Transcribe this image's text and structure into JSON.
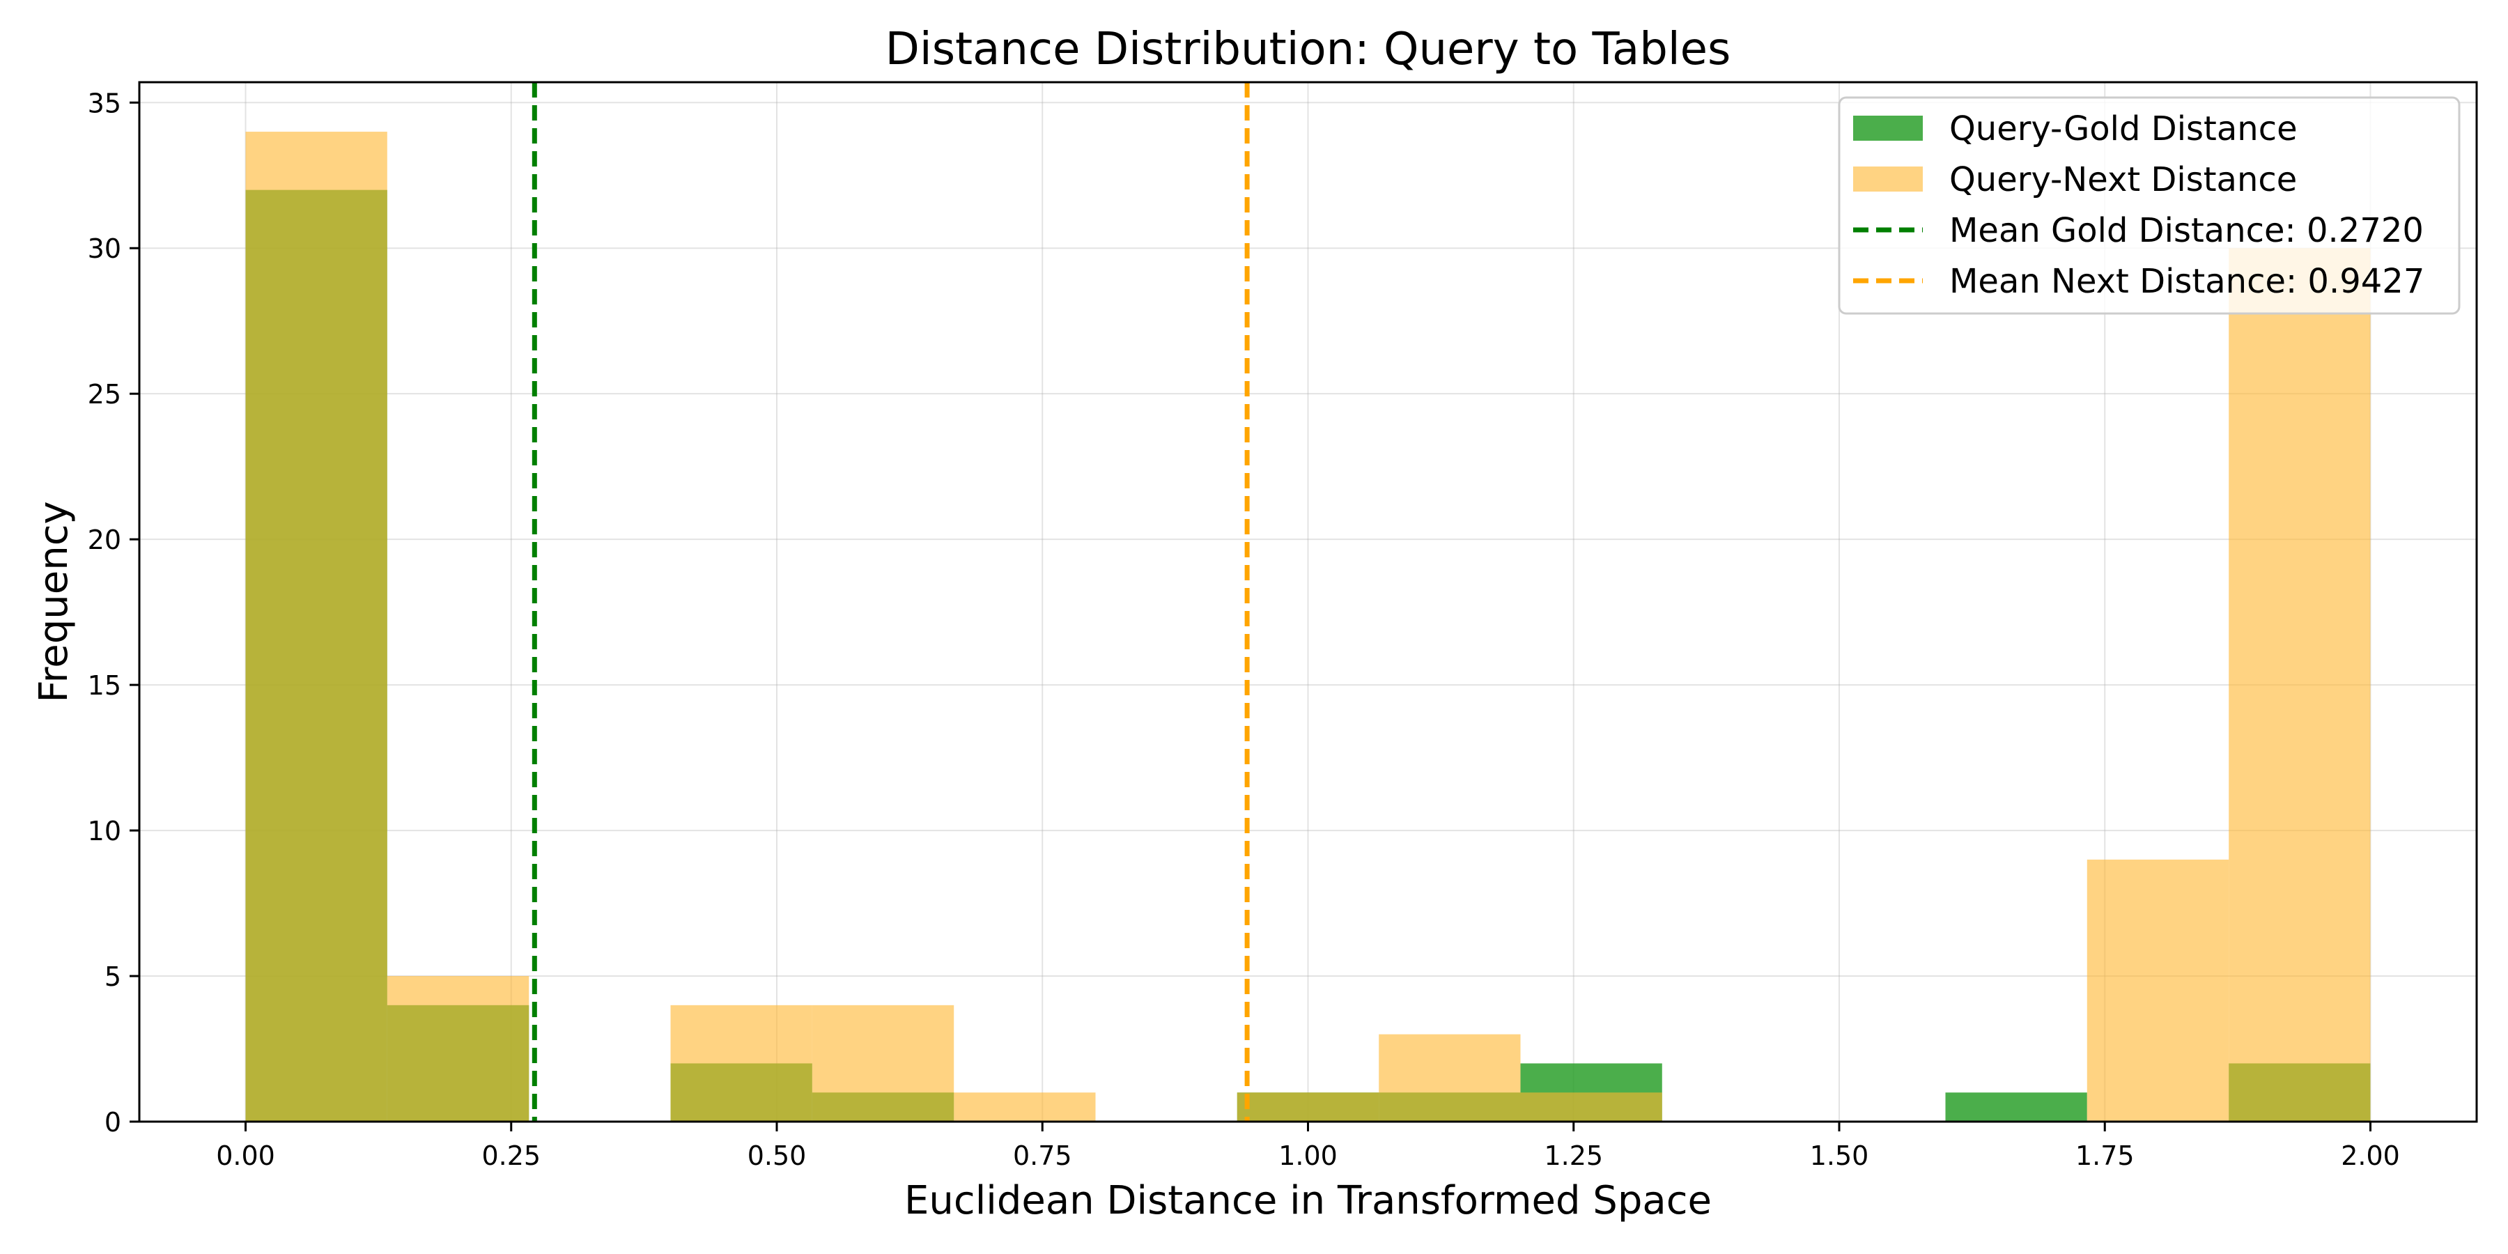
{
  "chart_data": {
    "type": "bar",
    "title": "Distance Distribution: Query to Tables",
    "xlabel": "Euclidean Distance in Transformed Space",
    "ylabel": "Frequency",
    "xlim": [
      -0.1,
      2.1
    ],
    "ylim": [
      0,
      35.7
    ],
    "xticks": [
      0.0,
      0.25,
      0.5,
      0.75,
      1.0,
      1.25,
      1.5,
      1.75,
      2.0
    ],
    "xtick_labels": [
      "0.00",
      "0.25",
      "0.50",
      "0.75",
      "1.00",
      "1.25",
      "1.50",
      "1.75",
      "2.00"
    ],
    "yticks": [
      0,
      5,
      10,
      15,
      20,
      25,
      30,
      35
    ],
    "ytick_labels": [
      "0",
      "5",
      "10",
      "15",
      "20",
      "25",
      "30",
      "35"
    ],
    "grid": true,
    "legend_position": "top-right",
    "series": [
      {
        "name": "Query-Gold Distance",
        "color": "#2ca02c",
        "opacity": 0.85,
        "bin_edges": [
          0.0,
          0.1333,
          0.2667,
          0.4,
          0.5333,
          0.6667,
          0.8,
          0.9333,
          1.0667,
          1.2,
          1.3333,
          1.4667,
          1.6,
          1.7333,
          1.8667,
          2.0
        ],
        "counts": [
          32,
          4,
          0,
          2,
          1,
          0,
          0,
          1,
          1,
          2,
          0,
          0,
          1,
          0,
          2
        ]
      },
      {
        "name": "Query-Next Distance",
        "color": "#ffb52e",
        "opacity": 0.6,
        "bin_edges": [
          0.0,
          0.1333,
          0.2667,
          0.4,
          0.5333,
          0.6667,
          0.8,
          0.9333,
          1.0667,
          1.2,
          1.3333,
          1.4667,
          1.6,
          1.7333,
          1.8667,
          2.0
        ],
        "counts": [
          34,
          5,
          0,
          4,
          4,
          1,
          0,
          1,
          3,
          1,
          0,
          0,
          0,
          9,
          30
        ]
      }
    ],
    "mean_lines": [
      {
        "name": "Mean Gold Distance: 0.2720",
        "value": 0.272,
        "color": "#007f00"
      },
      {
        "name": "Mean Next Distance: 0.9427",
        "value": 0.9427,
        "color": "#ffa500"
      }
    ]
  }
}
